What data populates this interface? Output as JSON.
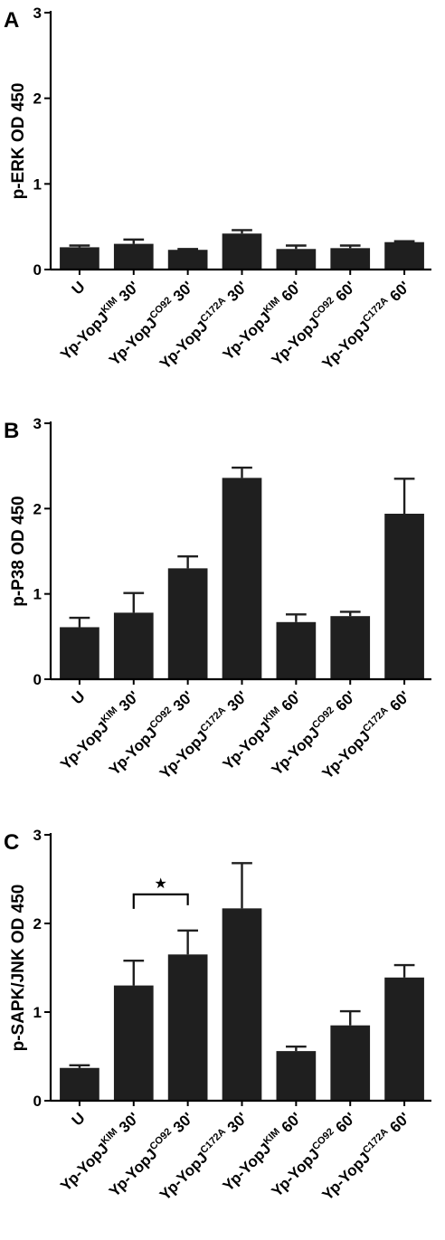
{
  "chart_data": [
    {
      "type": "bar",
      "panel": "A",
      "ylabel": "p-ERK OD 450",
      "ylim": [
        0,
        3
      ],
      "yticks": [
        0,
        1,
        2,
        3
      ],
      "categories": [
        {
          "base": "U",
          "sup": "",
          "time": ""
        },
        {
          "base": "Yp-YopJ",
          "sup": "KIM",
          "time": "30'"
        },
        {
          "base": "Yp-YopJ",
          "sup": "CO92",
          "time": "30'"
        },
        {
          "base": "Yp-YopJ",
          "sup": "C172A",
          "time": "30'"
        },
        {
          "base": "Yp-YopJ",
          "sup": "KIM",
          "time": "60'"
        },
        {
          "base": "Yp-YopJ",
          "sup": "CO92",
          "time": "60'"
        },
        {
          "base": "Yp-YopJ",
          "sup": "C172A",
          "time": "60'"
        }
      ],
      "values": [
        0.26,
        0.3,
        0.23,
        0.42,
        0.24,
        0.25,
        0.32
      ],
      "errors": [
        0.02,
        0.05,
        0.01,
        0.04,
        0.04,
        0.03,
        0.01
      ],
      "significance": []
    },
    {
      "type": "bar",
      "panel": "B",
      "ylabel": "p-P38 OD 450",
      "ylim": [
        0,
        3
      ],
      "yticks": [
        0,
        1,
        2,
        3
      ],
      "categories": [
        {
          "base": "U",
          "sup": "",
          "time": ""
        },
        {
          "base": "Yp-YopJ",
          "sup": "KIM",
          "time": "30'"
        },
        {
          "base": "Yp-YopJ",
          "sup": "CO92",
          "time": "30'"
        },
        {
          "base": "Yp-YopJ",
          "sup": "C172A",
          "time": "30'"
        },
        {
          "base": "Yp-YopJ",
          "sup": "KIM",
          "time": "60'"
        },
        {
          "base": "Yp-YopJ",
          "sup": "CO92",
          "time": "60'"
        },
        {
          "base": "Yp-YopJ",
          "sup": "C172A",
          "time": "60'"
        }
      ],
      "values": [
        0.61,
        0.78,
        1.3,
        2.36,
        0.67,
        0.74,
        1.94
      ],
      "errors": [
        0.11,
        0.23,
        0.14,
        0.12,
        0.09,
        0.05,
        0.41
      ],
      "significance": []
    },
    {
      "type": "bar",
      "panel": "C",
      "ylabel": "p-SAPK/JNK OD 450",
      "ylim": [
        0,
        3
      ],
      "yticks": [
        0,
        1,
        2,
        3
      ],
      "categories": [
        {
          "base": "U",
          "sup": "",
          "time": ""
        },
        {
          "base": "Yp-YopJ",
          "sup": "KIM",
          "time": "30'"
        },
        {
          "base": "Yp-YopJ",
          "sup": "CO92",
          "time": "30'"
        },
        {
          "base": "Yp-YopJ",
          "sup": "C172A",
          "time": "30'"
        },
        {
          "base": "Yp-YopJ",
          "sup": "KIM",
          "time": "60'"
        },
        {
          "base": "Yp-YopJ",
          "sup": "CO92",
          "time": "60'"
        },
        {
          "base": "Yp-YopJ",
          "sup": "C172A",
          "time": "60'"
        }
      ],
      "values": [
        0.37,
        1.3,
        1.65,
        2.17,
        0.56,
        0.85,
        1.39
      ],
      "errors": [
        0.03,
        0.28,
        0.27,
        0.51,
        0.05,
        0.16,
        0.14
      ],
      "significance": [
        {
          "from": 1,
          "to": 2,
          "mark": "★"
        }
      ]
    }
  ]
}
